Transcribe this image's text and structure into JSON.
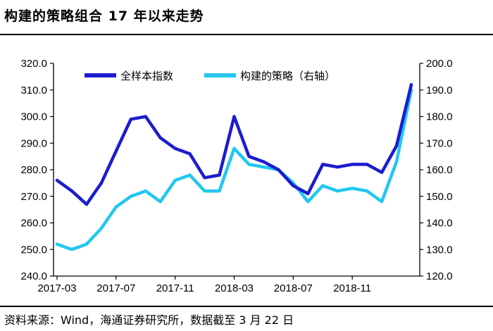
{
  "header": {
    "title": "构建的策略组合 17 年以来走势"
  },
  "footer": {
    "source": "资料来源：Wind，海通证券研究所，数据截至 3 月 22 日"
  },
  "colors": {
    "left_series": "#1c1ccf",
    "right_series": "#23c7ef",
    "axis": "#000000"
  },
  "chart_data": {
    "type": "line",
    "x_tick_labels": [
      "2017-03",
      "2017-07",
      "2017-11",
      "2018-03",
      "2018-07",
      "2018-11"
    ],
    "y_left": {
      "min": 240,
      "max": 320,
      "step": 10,
      "tick_labels": [
        "240.0",
        "250.0",
        "260.0",
        "270.0",
        "280.0",
        "290.0",
        "300.0",
        "310.0",
        "320.0"
      ]
    },
    "y_right": {
      "min": 120,
      "max": 200,
      "step": 10,
      "tick_labels": [
        "120.0",
        "130.0",
        "140.0",
        "150.0",
        "160.0",
        "170.0",
        "180.0",
        "190.0",
        "200.0"
      ]
    },
    "legend": {
      "placement": "top",
      "left_label": "全样本指数",
      "right_label": "构建的策略（右轴）"
    },
    "x": [
      "2017-03",
      "2017-04",
      "2017-05",
      "2017-06",
      "2017-07",
      "2017-08",
      "2017-09",
      "2017-10",
      "2017-11",
      "2017-12",
      "2018-01",
      "2018-02",
      "2018-03",
      "2018-04",
      "2018-05",
      "2018-06",
      "2018-07",
      "2018-08",
      "2018-09",
      "2018-10",
      "2018-11",
      "2018-12",
      "2019-01",
      "2019-02",
      "2019-03"
    ],
    "series": [
      {
        "name": "全样本指数",
        "axis": "left",
        "values": [
          276,
          272,
          267,
          275,
          287,
          299,
          300,
          292,
          288,
          286,
          277,
          278,
          300,
          285,
          283,
          280,
          274,
          271,
          282,
          281,
          282,
          282,
          279,
          289,
          312
        ]
      },
      {
        "name": "构建的策略（右轴）",
        "axis": "right",
        "values": [
          132,
          130,
          132,
          138,
          146,
          150,
          152,
          148,
          156,
          158,
          152,
          152,
          168,
          162,
          161,
          160,
          155,
          148,
          154,
          152,
          153,
          152,
          148,
          163,
          190
        ]
      }
    ]
  }
}
